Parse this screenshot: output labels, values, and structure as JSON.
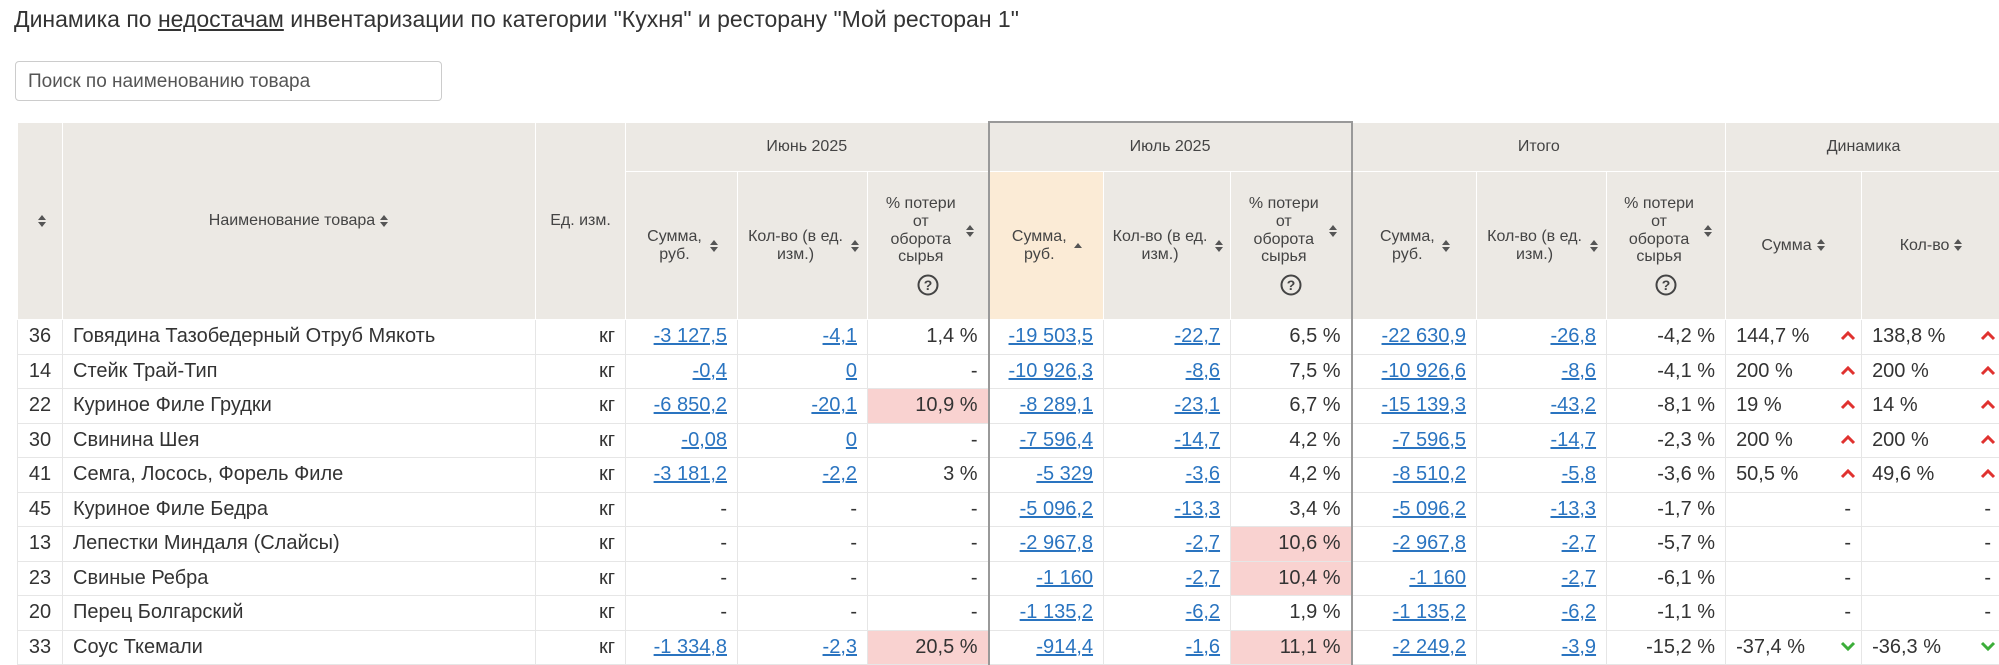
{
  "title": {
    "prefix": "Динамика по ",
    "link": "недостачам",
    "suffix": " инвентаризации по категории \"Кухня\" и ресторану \"Мой ресторан 1\""
  },
  "search_placeholder": "Поиск по наименованию товара",
  "table": {
    "groups": [
      "Июнь 2025",
      "Июль 2025",
      "Итого",
      "Динамика"
    ],
    "columns": {
      "name": "Наименование товара",
      "unit": "Ед. изм.",
      "sum": "Сумма, руб.",
      "qty": "Кол-во (в ед. изм.)",
      "pct": "% потери от оборота сырья",
      "dyn_sum": "Сумма",
      "dyn_qty": "Кол-во"
    },
    "rows": [
      {
        "cells": [
          "36",
          "Говядина Тазобедерный Отруб Мякоть",
          "кг",
          "-3 127,5",
          "-4,1",
          "1,4 %",
          "-19 503,5",
          "-22,7",
          "6,5 %",
          "-22 630,9",
          "-26,8",
          "-4,2 %",
          "144,7 %",
          "138,8 %"
        ],
        "trends": [
          "up",
          "up"
        ]
      },
      {
        "cells": [
          "14",
          "Стейк Трай-Тип",
          "кг",
          "-0,4",
          "0",
          "-",
          "-10 926,3",
          "-8,6",
          "7,5 %",
          "-10 926,6",
          "-8,6",
          "-4,1 %",
          "200 %",
          "200 %"
        ],
        "trends": [
          "up",
          "up"
        ]
      },
      {
        "cells": [
          "22",
          "Куриное Филе Грудки",
          "кг",
          "-6 850,2",
          "-20,1",
          "10,9 %",
          "-8 289,1",
          "-23,1",
          "6,7 %",
          "-15 139,3",
          "-43,2",
          "-8,1 %",
          "19 %",
          "14 %"
        ],
        "trends": [
          "up",
          "up"
        ],
        "highlight": [
          5
        ]
      },
      {
        "cells": [
          "30",
          "Свинина Шея",
          "кг",
          "-0,08",
          "0",
          "-",
          "-7 596,4",
          "-14,7",
          "4,2 %",
          "-7 596,5",
          "-14,7",
          "-2,3 %",
          "200 %",
          "200 %"
        ],
        "trends": [
          "up",
          "up"
        ]
      },
      {
        "cells": [
          "41",
          "Семга, Лосось, Форель Филе",
          "кг",
          "-3 181,2",
          "-2,2",
          "3 %",
          "-5 329",
          "-3,6",
          "4,2 %",
          "-8 510,2",
          "-5,8",
          "-3,6 %",
          "50,5 %",
          "49,6 %"
        ],
        "trends": [
          "up",
          "up"
        ]
      },
      {
        "cells": [
          "45",
          "Куриное Филе Бедра",
          "кг",
          "-",
          "-",
          "-",
          "-5 096,2",
          "-13,3",
          "3,4 %",
          "-5 096,2",
          "-13,3",
          "-1,7 %",
          "-",
          "-"
        ]
      },
      {
        "cells": [
          "13",
          "Лепестки Миндаля (Слайсы)",
          "кг",
          "-",
          "-",
          "-",
          "-2 967,8",
          "-2,7",
          "10,6 %",
          "-2 967,8",
          "-2,7",
          "-5,7 %",
          "-",
          "-"
        ],
        "highlight": [
          8
        ]
      },
      {
        "cells": [
          "23",
          "Свиные Ребра",
          "кг",
          "-",
          "-",
          "-",
          "-1 160",
          "-2,7",
          "10,4 %",
          "-1 160",
          "-2,7",
          "-6,1 %",
          "-",
          "-"
        ],
        "highlight": [
          8
        ]
      },
      {
        "cells": [
          "20",
          "Перец Болгарский",
          "кг",
          "-",
          "-",
          "-",
          "-1 135,2",
          "-6,2",
          "1,9 %",
          "-1 135,2",
          "-6,2",
          "-1,1 %",
          "-",
          "-"
        ]
      },
      {
        "cells": [
          "33",
          "Соус Ткемали",
          "кг",
          "-1 334,8",
          "-2,3",
          "20,5 %",
          "-914,4",
          "-1,6",
          "11,1 %",
          "-2 249,2",
          "-3,9",
          "-15,2 %",
          "-37,4 %",
          "-36,3 %"
        ],
        "trends": [
          "down",
          "down"
        ],
        "highlight": [
          5,
          8
        ]
      }
    ]
  }
}
